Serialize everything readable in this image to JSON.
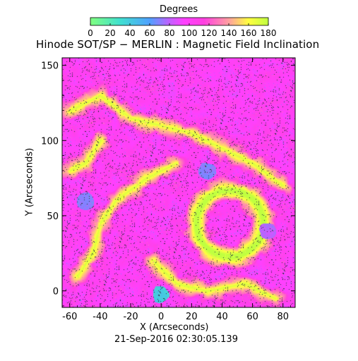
{
  "chart_data": {
    "type": "heatmap",
    "title": "Hinode SOT/SP − MERLIN : Magnetic Field Inclination",
    "xlabel": "X (Arcseconds)",
    "ylabel": "Y (Arcseconds)",
    "timestamp": "21-Sep-2016 02:30:05.139",
    "colorbar": {
      "label": "Degrees",
      "range": [
        0,
        180
      ],
      "ticks": [
        0,
        20,
        40,
        60,
        80,
        100,
        120,
        140,
        160,
        180
      ],
      "stops": [
        {
          "value": 0,
          "color": "#80ff80"
        },
        {
          "value": 30,
          "color": "#40e0d0"
        },
        {
          "value": 60,
          "color": "#50a0ff"
        },
        {
          "value": 80,
          "color": "#c060ff"
        },
        {
          "value": 95,
          "color": "#ff40ff"
        },
        {
          "value": 115,
          "color": "#ff40e0"
        },
        {
          "value": 140,
          "color": "#ffa0a0"
        },
        {
          "value": 160,
          "color": "#ffff40"
        },
        {
          "value": 180,
          "color": "#c0ff40"
        }
      ]
    },
    "xlim": [
      -65,
      88
    ],
    "ylim": [
      -11,
      155
    ],
    "xticks": [
      -60,
      -40,
      -20,
      0,
      20,
      40,
      60,
      80
    ],
    "yticks": [
      0,
      50,
      100,
      150
    ],
    "colors": {
      "background_map": "#f040f0",
      "magenta": "#ff40ff",
      "yellow": "#ffff40",
      "green": "#c0ff40",
      "blue": "#5090ff",
      "cyan": "#40e0d0"
    },
    "features": {
      "high_inclination_ring": {
        "center": [
          45,
          45
        ],
        "radius": 22,
        "value": 165
      },
      "yellow_lanes": [
        [
          [
            -60,
            120
          ],
          [
            -40,
            130
          ],
          [
            -20,
            115
          ],
          [
            0,
            110
          ],
          [
            20,
            105
          ],
          [
            40,
            95
          ],
          [
            60,
            85
          ],
          [
            80,
            70
          ]
        ],
        [
          [
            -55,
            10
          ],
          [
            -45,
            25
          ],
          [
            -40,
            45
          ],
          [
            -30,
            60
          ],
          [
            -10,
            75
          ],
          [
            10,
            85
          ]
        ],
        [
          [
            -5,
            20
          ],
          [
            10,
            5
          ],
          [
            30,
            0
          ],
          [
            55,
            5
          ],
          [
            75,
            -5
          ]
        ],
        [
          [
            -60,
            80
          ],
          [
            -50,
            85
          ],
          [
            -40,
            100
          ]
        ]
      ],
      "low_inclination_patches": [
        {
          "center": [
            0,
            -2
          ],
          "value": 30
        },
        {
          "center": [
            -50,
            60
          ],
          "value": 60
        },
        {
          "center": [
            30,
            80
          ],
          "value": 60
        },
        {
          "center": [
            70,
            40
          ],
          "value": 70
        }
      ]
    }
  }
}
